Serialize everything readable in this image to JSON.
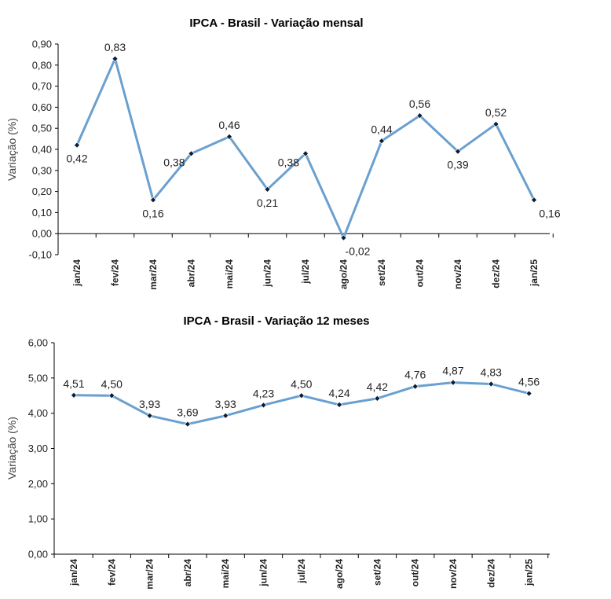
{
  "chart_data": [
    {
      "type": "line",
      "title": "IPCA - Brasil - Variação mensal",
      "xlabel": "",
      "ylabel": "Variação (%)",
      "categories": [
        "jan/24",
        "fev/24",
        "mar/24",
        "abr/24",
        "mai/24",
        "jun/24",
        "jul/24",
        "ago/24",
        "set/24",
        "out/24",
        "nov/24",
        "dez/24",
        "jan/25"
      ],
      "values": [
        0.42,
        0.83,
        0.16,
        0.38,
        0.46,
        0.21,
        0.38,
        -0.02,
        0.44,
        0.56,
        0.39,
        0.52,
        0.16
      ],
      "value_labels": [
        "0,42",
        "0,83",
        "0,16",
        "0,38",
        "0,46",
        "0,21",
        "0,38",
        "-0,02",
        "0,44",
        "0,56",
        "0,39",
        "0,52",
        "0,16"
      ],
      "label_positions": [
        "below",
        "above",
        "below",
        "left",
        "above",
        "below",
        "left",
        "below",
        "above",
        "above",
        "below",
        "above",
        "below"
      ],
      "ylim": [
        -0.1,
        0.9
      ],
      "yticks": [
        -0.1,
        0.0,
        0.1,
        0.2,
        0.3,
        0.4,
        0.5,
        0.6,
        0.7,
        0.8,
        0.9
      ],
      "ytick_labels": [
        "-0,10",
        "0,00",
        "0,10",
        "0,20",
        "0,30",
        "0,40",
        "0,50",
        "0,60",
        "0,70",
        "0,80",
        "0,90"
      ],
      "grid": false,
      "color": "#6aa0cf"
    },
    {
      "type": "line",
      "title": "IPCA - Brasil - Variação 12 meses",
      "xlabel": "",
      "ylabel": "Variação (%)",
      "categories": [
        "jan/24",
        "fev/24",
        "mar/24",
        "abr/24",
        "mai/24",
        "jun/24",
        "jul/24",
        "ago/24",
        "set/24",
        "out/24",
        "nov/24",
        "dez/24",
        "jan/25"
      ],
      "values": [
        4.51,
        4.5,
        3.93,
        3.69,
        3.93,
        4.23,
        4.5,
        4.24,
        4.42,
        4.76,
        4.87,
        4.83,
        4.56
      ],
      "value_labels": [
        "4,51",
        "4,50",
        "3,93",
        "3,69",
        "3,93",
        "4,23",
        "4,50",
        "4,24",
        "4,42",
        "4,76",
        "4,87",
        "4,83",
        "4,56"
      ],
      "label_positions": [
        "above",
        "above",
        "above",
        "above",
        "above",
        "above",
        "above",
        "above",
        "above",
        "above",
        "above",
        "above",
        "above"
      ],
      "ylim": [
        0.0,
        6.0
      ],
      "yticks": [
        0,
        1,
        2,
        3,
        4,
        5,
        6
      ],
      "ytick_labels": [
        "0,00",
        "1,00",
        "2,00",
        "3,00",
        "4,00",
        "5,00",
        "6,00"
      ],
      "grid": false,
      "color": "#6aa0cf"
    }
  ]
}
